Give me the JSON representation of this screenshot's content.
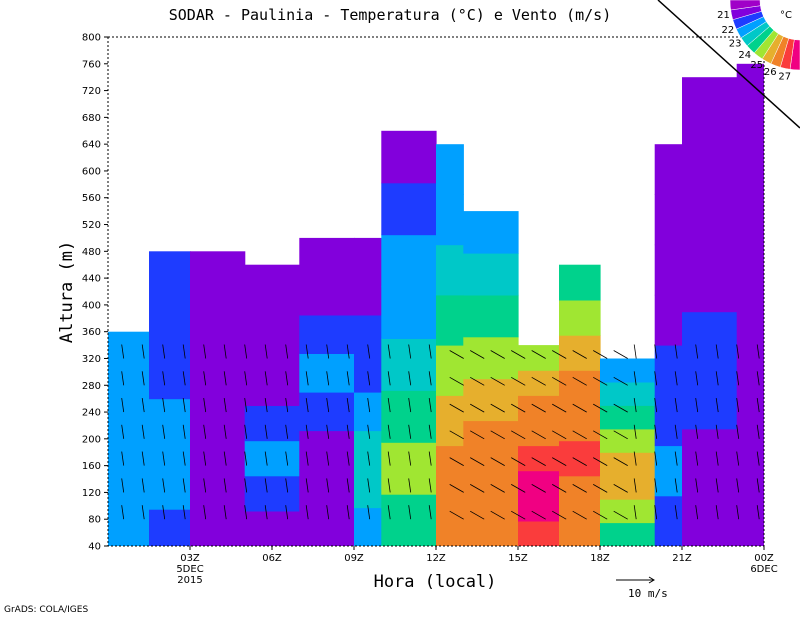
{
  "chart_data": {
    "type": "contour-heatmap",
    "title": "SODAR - Paulinia - Temperatura (°C) e Vento (m/s)",
    "xlabel": "Hora (local)",
    "ylabel": "Altura (m)",
    "ylim": [
      40,
      800
    ],
    "yticks": [
      "40",
      "80",
      "120",
      "160",
      "200",
      "240",
      "280",
      "320",
      "360",
      "400",
      "440",
      "480",
      "520",
      "560",
      "600",
      "640",
      "680",
      "720",
      "760",
      "800"
    ],
    "xlim": [
      0,
      24
    ],
    "xticks": [
      {
        "hour": 3,
        "label": "03Z",
        "sub1": "5DEC",
        "sub2": "2015"
      },
      {
        "hour": 6,
        "label": "06Z"
      },
      {
        "hour": 9,
        "label": "09Z"
      },
      {
        "hour": 12,
        "label": "12Z"
      },
      {
        "hour": 15,
        "label": "15Z"
      },
      {
        "hour": 18,
        "label": "18Z"
      },
      {
        "hour": 21,
        "label": "21Z"
      },
      {
        "hour": 24,
        "label": "00Z",
        "sub1": "6DEC"
      }
    ],
    "colorbar": {
      "unit": "°C",
      "levels": [
        "21",
        "22",
        "23",
        "24",
        "25",
        "26",
        "27"
      ],
      "colors": [
        "#a000c8",
        "#8200dc",
        "#1e3cff",
        "#00a0ff",
        "#00c8c8",
        "#00d28c",
        "#a0e632",
        "#e6af2d",
        "#f08228",
        "#fa3c3c",
        "#f00082"
      ]
    },
    "temperature_bands_by_hour": [
      {
        "hour": 0,
        "top_m": 360,
        "values": [
          22.5,
          22.5,
          22.5,
          22.5,
          22.5,
          22.5,
          22.5,
          22.5
        ]
      },
      {
        "hour": 1.5,
        "top_m": 480,
        "values": [
          22.2,
          22.5,
          22.5,
          22.5,
          22.2,
          22.0,
          22.0,
          22.0
        ]
      },
      {
        "hour": 3,
        "top_m": 480,
        "values": [
          21.8,
          21.8,
          21.8,
          21.8,
          21.8,
          21.8,
          21.8,
          21.8
        ]
      },
      {
        "hour": 5,
        "top_m": 460,
        "values": [
          21.5,
          22.2,
          22.5,
          22.2,
          21.8,
          21.8,
          21.8,
          21.8
        ]
      },
      {
        "hour": 7,
        "top_m": 500,
        "values": [
          21.8,
          21.8,
          21.8,
          22.2,
          22.5,
          22.2,
          21.8,
          21.8
        ]
      },
      {
        "hour": 9,
        "top_m": 500,
        "values": [
          22.5,
          23.5,
          23.5,
          22.5,
          22.2,
          22.0,
          21.8,
          21.8
        ]
      },
      {
        "hour": 10,
        "top_m": 660,
        "values": [
          24.0,
          24.5,
          24.0,
          23.5,
          23.0,
          22.5,
          22.2,
          21.8
        ]
      },
      {
        "hour": 12,
        "top_m": 640,
        "values": [
          25.5,
          25.5,
          25.0,
          24.5,
          24.0,
          23.5,
          23.0,
          22.5
        ]
      },
      {
        "hour": 13,
        "top_m": 540,
        "values": [
          26.0,
          26.0,
          25.5,
          25.0,
          24.5,
          24.0,
          23.5,
          22.5
        ]
      },
      {
        "hour": 15,
        "top_m": 340,
        "values": [
          26.5,
          27.0,
          27.0,
          26.5,
          26.0,
          25.5,
          25.0,
          24.5
        ]
      },
      {
        "hour": 16.5,
        "top_m": 460,
        "values": [
          26.0,
          26.0,
          26.5,
          26.0,
          25.5,
          25.0,
          24.5,
          24.0
        ]
      },
      {
        "hour": 18,
        "top_m": 320,
        "values": [
          24.0,
          24.5,
          25.0,
          25.0,
          24.5,
          24.0,
          23.5,
          23.0
        ]
      },
      {
        "hour": 20,
        "top_m": 640,
        "values": [
          22.2,
          22.5,
          22.2,
          22.0,
          21.8,
          21.8,
          21.8,
          21.5
        ]
      },
      {
        "hour": 21,
        "top_m": 740,
        "values": [
          21.8,
          21.8,
          22.2,
          22.2,
          21.8,
          21.8,
          21.8,
          21.5
        ]
      },
      {
        "hour": 23,
        "top_m": 760,
        "values": [
          21.8,
          21.8,
          21.8,
          21.8,
          21.8,
          21.8,
          21.8,
          21.5
        ]
      }
    ],
    "wind_reference": {
      "label": "10 m/s",
      "speed": 10
    },
    "footer": "GrADS: COLA/IGES"
  }
}
